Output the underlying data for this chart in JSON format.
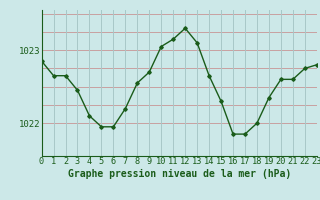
{
  "x": [
    0,
    1,
    2,
    3,
    4,
    5,
    6,
    7,
    8,
    9,
    10,
    11,
    12,
    13,
    14,
    15,
    16,
    17,
    18,
    19,
    20,
    21,
    22,
    23
  ],
  "y": [
    1022.85,
    1022.65,
    1022.65,
    1022.45,
    1022.1,
    1021.95,
    1021.95,
    1022.2,
    1022.55,
    1022.7,
    1023.05,
    1023.15,
    1023.3,
    1023.1,
    1022.65,
    1022.3,
    1021.85,
    1021.85,
    1022.0,
    1022.35,
    1022.6,
    1022.6,
    1022.75,
    1022.8
  ],
  "line_color": "#1a5c1a",
  "marker_color": "#1a5c1a",
  "bg_color": "#cce8e8",
  "plot_bg_color": "#cce8e8",
  "grid_h_color": "#c8a0a0",
  "grid_v_color": "#a8c8c8",
  "xlabel": "Graphe pression niveau de la mer (hPa)",
  "yticks": [
    1022,
    1023
  ],
  "xtick_labels": [
    "0",
    "1",
    "2",
    "3",
    "4",
    "5",
    "6",
    "7",
    "8",
    "9",
    "10",
    "11",
    "12",
    "13",
    "14",
    "15",
    "16",
    "17",
    "18",
    "19",
    "20",
    "21",
    "22",
    "23"
  ],
  "ylim": [
    1021.55,
    1023.55
  ],
  "xlim": [
    0,
    23
  ],
  "xlabel_fontsize": 7.0,
  "tick_fontsize": 6.5,
  "axis_color": "#1a5c1a",
  "ytick_label_x": -0.5
}
